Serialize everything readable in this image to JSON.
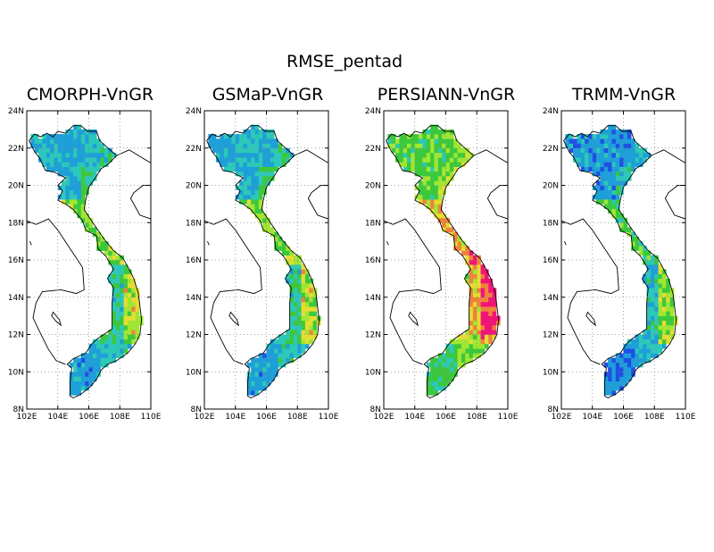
{
  "figure": {
    "title": "RMSE_pentad"
  },
  "panels": [
    {
      "title": "CMORPH-VnGR",
      "error_profile": "low"
    },
    {
      "title": "GSMaP-VnGR",
      "error_profile": "low"
    },
    {
      "title": "PERSIANN-VnGR",
      "error_profile": "high"
    },
    {
      "title": "TRMM-VnGR",
      "error_profile": "lowest"
    }
  ],
  "axes": {
    "lon_range": [
      102,
      110
    ],
    "lat_range": [
      8,
      24
    ],
    "x_ticks": [
      "102E",
      "104E",
      "106E",
      "108E",
      "110E"
    ],
    "y_ticks": [
      "8N",
      "10N",
      "12N",
      "14N",
      "16N",
      "18N",
      "20N",
      "22N",
      "24N"
    ],
    "grid": "dotted"
  },
  "colors": {
    "low": "#1e50e6",
    "low_mid": "#1e9fd8",
    "mid": "#2cc8b8",
    "mid_high": "#3cc83c",
    "high": "#a0e632",
    "higher": "#e6dc32",
    "very_high": "#f0823c",
    "extreme": "#f01478"
  }
}
